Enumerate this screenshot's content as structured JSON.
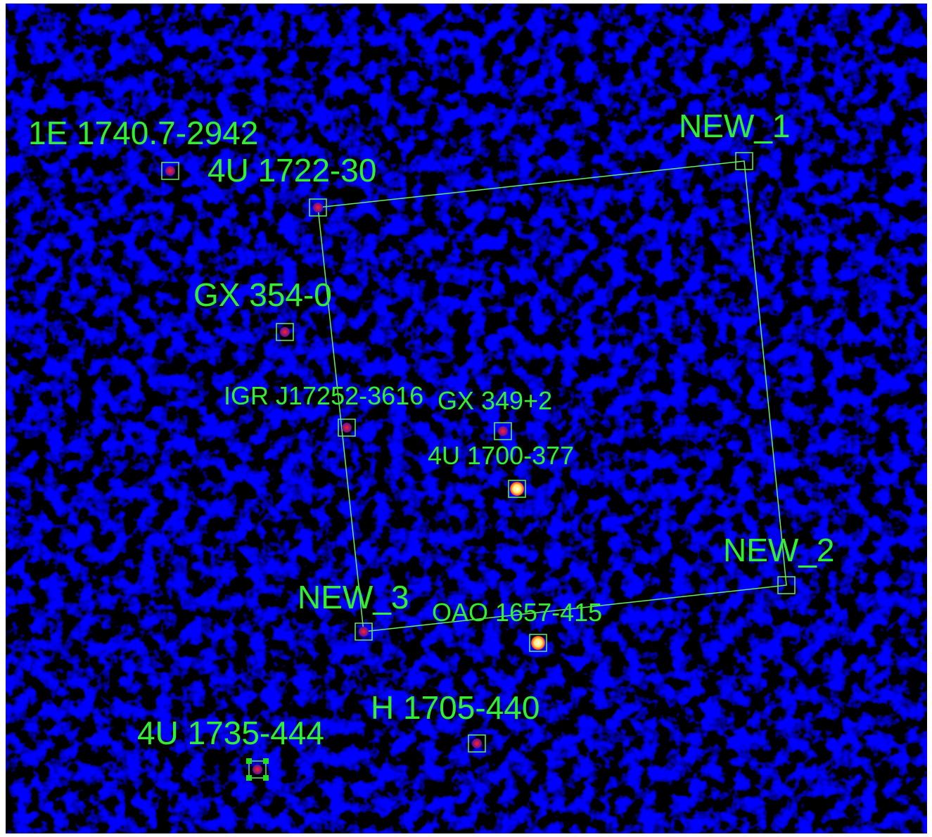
{
  "sources": [
    {
      "label": "1E 1740.7-2942"
    },
    {
      "label": "4U 1722-30"
    },
    {
      "label": "NEW_1"
    },
    {
      "label": "GX 354-0"
    },
    {
      "label": "IGR J17252-3616"
    },
    {
      "label": "GX 349+2"
    },
    {
      "label": "4U 1700-377"
    },
    {
      "label": "NEW_2"
    },
    {
      "label": "NEW_3"
    },
    {
      "label": "OAO 1657-415"
    },
    {
      "label": "H 1705-440"
    },
    {
      "label": "4U 1735-444"
    }
  ]
}
